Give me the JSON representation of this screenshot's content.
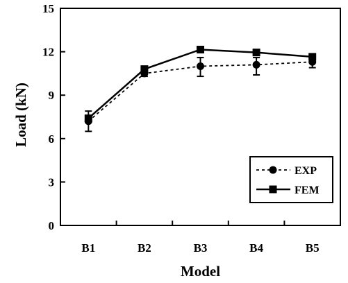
{
  "chart_data": {
    "type": "line",
    "xlabel": "Model",
    "ylabel": "Load (kN)",
    "categories": [
      "B1",
      "B2",
      "B3",
      "B4",
      "B5"
    ],
    "ylim": [
      0,
      15
    ],
    "yticks": [
      "0",
      "3",
      "6",
      "9",
      "12",
      "15"
    ],
    "grid": false,
    "legend_position": "bottom-right",
    "series": [
      {
        "name": "EXP",
        "marker": "circle",
        "line_style": "dashed",
        "color": "#000000",
        "values": [
          7.2,
          10.5,
          11.0,
          11.1,
          11.3
        ],
        "error_low": [
          6.5,
          10.3,
          10.3,
          10.4,
          10.9
        ],
        "error_high": [
          7.9,
          10.7,
          11.6,
          11.6,
          11.6
        ]
      },
      {
        "name": "FEM",
        "marker": "square",
        "line_style": "solid",
        "color": "#000000",
        "values": [
          7.4,
          10.8,
          12.15,
          11.95,
          11.65
        ]
      }
    ]
  }
}
